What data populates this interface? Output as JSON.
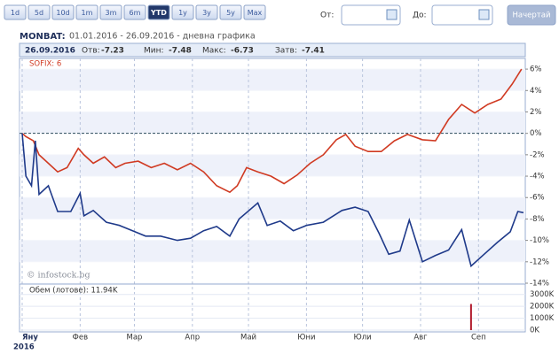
{
  "toolbar": {
    "periods": [
      "1d",
      "5d",
      "10d",
      "1m",
      "3m",
      "6m",
      "YTD",
      "1y",
      "3y",
      "5y",
      "Max"
    ],
    "active": "YTD",
    "from_label": "От:",
    "to_label": "До:",
    "button": "Начертай"
  },
  "header": {
    "ticker": "MONBAT:",
    "range": "01.01.2016 - 26.09.2016 - дневна графика"
  },
  "quote": {
    "date": "26.09.2016",
    "open_label": "Отв:",
    "open": -7.23,
    "low_label": "Мин:",
    "low": -7.48,
    "high_label": "Макс:",
    "high": -6.73,
    "close_label": "Затв:",
    "close": -7.41
  },
  "chart_data": [
    {
      "type": "line",
      "watermark": "© infostock.bg",
      "year_label": "2016",
      "zero_line": true,
      "xlim": [
        0,
        269
      ],
      "xticks": [
        {
          "value": 0,
          "label": "Яну"
        },
        {
          "value": 31,
          "label": "Фев"
        },
        {
          "value": 60,
          "label": "Мар"
        },
        {
          "value": 91,
          "label": "Апр"
        },
        {
          "value": 121,
          "label": "Май"
        },
        {
          "value": 152,
          "label": "Юни"
        },
        {
          "value": 182,
          "label": "Юли"
        },
        {
          "value": 213,
          "label": "Авг"
        },
        {
          "value": 244,
          "label": "Сеп"
        }
      ],
      "ylim": [
        -14,
        7
      ],
      "yticks": [
        {
          "value": 6,
          "label": "6%"
        },
        {
          "value": 4,
          "label": "4%"
        },
        {
          "value": 2,
          "label": "2%"
        },
        {
          "value": 0,
          "label": "0%"
        },
        {
          "value": -2,
          "label": "-2%"
        },
        {
          "value": -4,
          "label": "-4%"
        },
        {
          "value": -6,
          "label": "-6%"
        },
        {
          "value": -8,
          "label": "-8%"
        },
        {
          "value": -10,
          "label": "-10%"
        },
        {
          "value": -12,
          "label": "-12%"
        },
        {
          "value": -14,
          "label": "-14%"
        }
      ],
      "series": [
        {
          "name": "SOFIX: 6",
          "color": "#d03a22",
          "x": [
            0,
            2,
            6,
            9,
            14,
            19,
            24,
            30,
            33,
            38,
            44,
            50,
            55,
            62,
            69,
            76,
            83,
            90,
            97,
            104,
            111,
            115,
            120,
            126,
            133,
            140,
            147,
            154,
            161,
            168,
            173,
            178,
            185,
            192,
            199,
            206,
            214,
            221,
            228,
            235,
            242,
            249,
            256,
            262,
            267
          ],
          "values": [
            0,
            -0.3,
            -0.7,
            -2,
            -2.8,
            -3.6,
            -3.2,
            -1.4,
            -2,
            -2.8,
            -2.2,
            -3.2,
            -2.8,
            -2.6,
            -3.2,
            -2.8,
            -3.4,
            -2.8,
            -3.6,
            -4.9,
            -5.5,
            -4.9,
            -3.2,
            -3.6,
            -4,
            -4.7,
            -3.9,
            -2.8,
            -2,
            -0.6,
            -0.1,
            -1.2,
            -1.7,
            -1.7,
            -0.7,
            -0.1,
            -0.6,
            -0.7,
            1.3,
            2.7,
            1.9,
            2.7,
            3.2,
            4.6,
            6
          ]
        },
        {
          "color": "#1f3a8a",
          "x": [
            0,
            2,
            5,
            7,
            9,
            14,
            19,
            26,
            31,
            33,
            38,
            45,
            52,
            59,
            66,
            74,
            83,
            90,
            97,
            104,
            111,
            116,
            126,
            131,
            138,
            145,
            152,
            161,
            171,
            178,
            185,
            191,
            196,
            202,
            207,
            214,
            221,
            228,
            235,
            240,
            247,
            254,
            261,
            265,
            268
          ],
          "values": [
            0,
            -4,
            -4.9,
            -0.7,
            -5.7,
            -4.9,
            -7.3,
            -7.3,
            -5.6,
            -7.7,
            -7.2,
            -8.3,
            -8.6,
            -9.1,
            -9.6,
            -9.6,
            -10,
            -9.8,
            -9.1,
            -8.7,
            -9.6,
            -8,
            -6.5,
            -8.6,
            -8.2,
            -9.1,
            -8.6,
            -8.3,
            -7.2,
            -6.9,
            -7.3,
            -9.4,
            -11.3,
            -11,
            -8.1,
            -12,
            -11.4,
            -10.9,
            -9,
            -12.4,
            -11.3,
            -10.2,
            -9.2,
            -7.3,
            -7.41
          ]
        }
      ]
    },
    {
      "type": "bar",
      "label": "Обем (лотове): 11.94K",
      "color": "#b0182a",
      "xlim": [
        0,
        269
      ],
      "x": [
        240
      ],
      "values": [
        2200000
      ],
      "ylim": [
        0,
        3800000
      ],
      "yticks": [
        {
          "value": 3000000,
          "label": "3000K"
        },
        {
          "value": 2000000,
          "label": "2000K"
        },
        {
          "value": 1000000,
          "label": "1000K"
        },
        {
          "value": 0,
          "label": "0K"
        }
      ]
    }
  ]
}
